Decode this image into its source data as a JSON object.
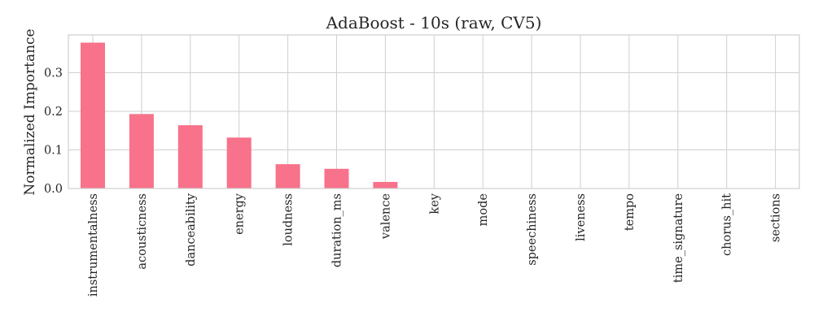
{
  "chart_data": {
    "type": "bar",
    "title": "AdaBoost - 10s (raw, CV5)",
    "xlabel": "",
    "ylabel": "Normalized Importance",
    "categories": [
      "instrumentalness",
      "acousticness",
      "danceability",
      "energy",
      "loudness",
      "duration_ms",
      "valence",
      "key",
      "mode",
      "speechiness",
      "liveness",
      "tempo",
      "time_signature",
      "chorus_hit",
      "sections"
    ],
    "values": [
      0.378,
      0.193,
      0.164,
      0.132,
      0.063,
      0.051,
      0.017,
      0.0,
      0.0,
      0.0,
      0.0,
      0.0,
      0.0,
      0.0,
      0.0
    ],
    "ylim": [
      0,
      0.398
    ],
    "yticks": [
      "0.0",
      "0.1",
      "0.2",
      "0.3"
    ],
    "grid": true,
    "bar_color": "#f7728a",
    "grid_color": "#cfcfcf"
  }
}
